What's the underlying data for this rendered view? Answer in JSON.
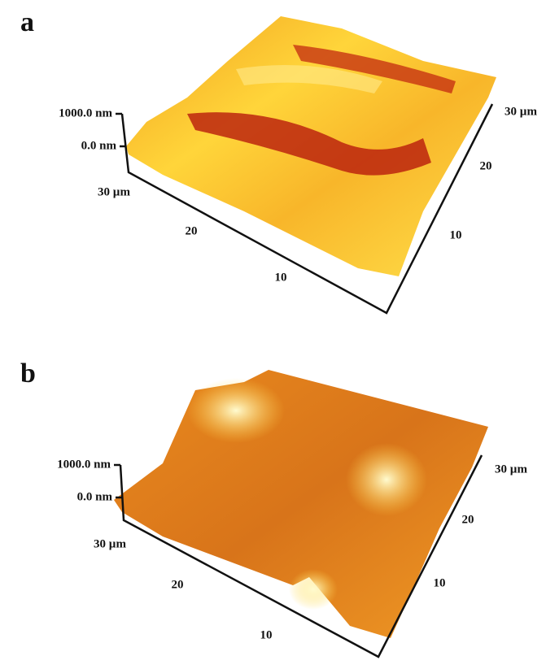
{
  "panels": [
    {
      "label": "a",
      "z_labels": [
        "1000.0 nm",
        "0.0 nm"
      ],
      "x_labels": [
        "30 µm",
        "20",
        "10"
      ],
      "y_labels": [
        "10",
        "20",
        "30 µm"
      ]
    },
    {
      "label": "b",
      "z_labels": [
        "1000.0 nm",
        "0.0 nm"
      ],
      "x_labels": [
        "30 µm",
        "20",
        "10"
      ],
      "y_labels": [
        "10",
        "20",
        "30 µm"
      ]
    }
  ]
}
